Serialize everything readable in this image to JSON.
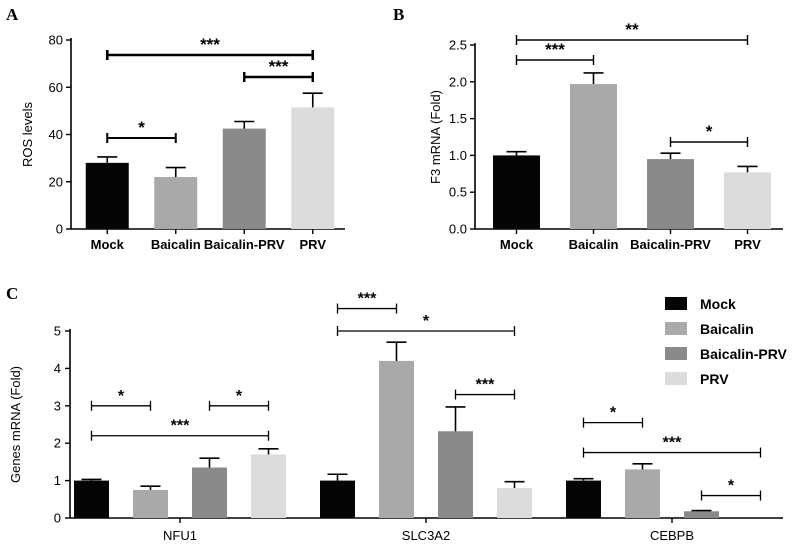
{
  "colors": {
    "mock": "#050505",
    "baicalin": "#a9a9a9",
    "baicalin_prv": "#8a8a8a",
    "prv": "#dcdcdc"
  },
  "legend": {
    "entries": [
      {
        "label": "Mock",
        "color": "#050505"
      },
      {
        "label": "Baicalin",
        "color": "#a9a9a9"
      },
      {
        "label": "Baicalin-PRV",
        "color": "#8a8a8a"
      },
      {
        "label": "PRV",
        "color": "#dcdcdc"
      }
    ]
  },
  "chart_data": [
    {
      "panel": "A",
      "type": "bar",
      "ylabel": "ROS levels",
      "ylim": [
        0,
        80
      ],
      "yticks": [
        0,
        20,
        40,
        60,
        80
      ],
      "categories": [
        "Mock",
        "Baicalin",
        "Baicalin-PRV",
        "PRV"
      ],
      "values": [
        28,
        22,
        42.5,
        51.5
      ],
      "errors": [
        2.5,
        4,
        3,
        6
      ],
      "significance": [
        {
          "from": 0,
          "to": 1,
          "label": "*"
        },
        {
          "from": 2,
          "to": 3,
          "label": "***"
        },
        {
          "from": 0,
          "to": 3,
          "label": "***"
        }
      ]
    },
    {
      "panel": "B",
      "type": "bar",
      "ylabel": "F3 mRNA (Fold)",
      "ylim": [
        0,
        2.5
      ],
      "yticks": [
        "0.0",
        "0.5",
        "1.0",
        "1.5",
        "2.0",
        "2.5"
      ],
      "categories": [
        "Mock",
        "Baicalin",
        "Baicalin-PRV",
        "PRV"
      ],
      "values": [
        1.0,
        1.97,
        0.95,
        0.77
      ],
      "errors": [
        0.05,
        0.15,
        0.08,
        0.08
      ],
      "significance": [
        {
          "from": 0,
          "to": 1,
          "label": "***"
        },
        {
          "from": 0,
          "to": 3,
          "label": "**"
        },
        {
          "from": 2,
          "to": 3,
          "label": "*"
        }
      ]
    },
    {
      "panel": "C",
      "type": "bar",
      "ylabel": "Genes mRNA (Fold)",
      "ylim": [
        0,
        5
      ],
      "yticks": [
        0,
        1,
        2,
        3,
        4,
        5
      ],
      "groups": [
        "NFU1",
        "SLC3A2",
        "CEBPB"
      ],
      "series": [
        {
          "name": "Mock",
          "values": [
            1.0,
            1.0,
            1.0
          ],
          "errors": [
            0.03,
            0.17,
            0.05
          ]
        },
        {
          "name": "Baicalin",
          "values": [
            0.75,
            4.2,
            1.3
          ],
          "errors": [
            0.1,
            0.5,
            0.15
          ]
        },
        {
          "name": "Baicalin-PRV",
          "values": [
            1.35,
            2.32,
            0.18
          ],
          "errors": [
            0.25,
            0.65,
            0.02
          ]
        },
        {
          "name": "PRV",
          "values": [
            1.7,
            0.8,
            0.0
          ],
          "errors": [
            0.15,
            0.17,
            0.0
          ]
        }
      ],
      "significance": [
        {
          "group": 0,
          "from": 0,
          "to": 1,
          "label": "*",
          "y": 3.0
        },
        {
          "group": 0,
          "from": 2,
          "to": 3,
          "label": "*",
          "y": 3.0
        },
        {
          "group": 0,
          "from": 0,
          "to": 3,
          "label": "***",
          "y": 2.2
        },
        {
          "group": 1,
          "from": 0,
          "to": 1,
          "label": "***",
          "y": 5.6
        },
        {
          "group": 1,
          "from": 0,
          "to": 3,
          "label": "*",
          "y": 5.0
        },
        {
          "group": 1,
          "from": 2,
          "to": 3,
          "label": "***",
          "y": 3.3
        },
        {
          "group": 2,
          "from": 0,
          "to": 1,
          "label": "*",
          "y": 2.55
        },
        {
          "group": 2,
          "from": 0,
          "to": 3,
          "label": "***",
          "y": 1.75
        },
        {
          "group": 2,
          "from": 2,
          "to": 3,
          "label": "*",
          "y": 0.6
        }
      ]
    }
  ]
}
